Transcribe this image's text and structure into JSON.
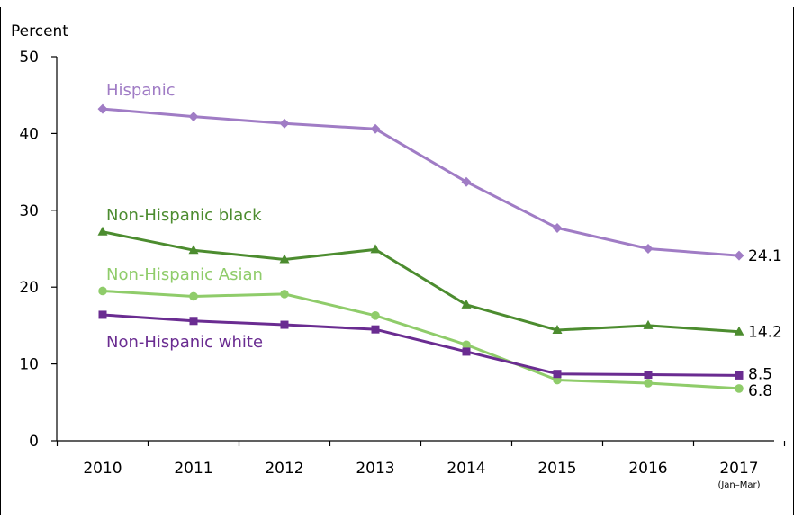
{
  "chart_data": {
    "type": "line",
    "ylabel": "Percent",
    "ylim": [
      0,
      50
    ],
    "yticks": [
      0,
      10,
      20,
      30,
      40,
      50
    ],
    "categories": [
      "2010",
      "2011",
      "2012",
      "2013",
      "2014",
      "2015",
      "2016",
      "2017"
    ],
    "category_sublabels": [
      "",
      "",
      "",
      "",
      "",
      "",
      "",
      "(Jan–Mar)"
    ],
    "grid": false,
    "legend": "inline labels beside lines",
    "series": [
      {
        "name": "Hispanic",
        "color": "#a07cc5",
        "marker": "diamond",
        "values": [
          43.2,
          42.2,
          41.3,
          40.6,
          33.7,
          27.7,
          25.0,
          24.1
        ],
        "end_label": "24.1"
      },
      {
        "name": "Non-Hispanic black",
        "color": "#4c8c2f",
        "marker": "triangle",
        "values": [
          27.2,
          24.8,
          23.6,
          24.9,
          17.7,
          14.4,
          15.0,
          14.2
        ],
        "end_label": "14.2"
      },
      {
        "name": "Non-Hispanic Asian",
        "color": "#8fcc6a",
        "marker": "circle",
        "values": [
          19.5,
          18.8,
          19.1,
          16.3,
          12.5,
          7.9,
          7.5,
          6.8
        ],
        "end_label": "6.8"
      },
      {
        "name": "Non-Hispanic white",
        "color": "#6a2c91",
        "marker": "square",
        "values": [
          16.4,
          15.6,
          15.1,
          14.5,
          11.6,
          8.7,
          8.6,
          8.5
        ],
        "end_label": "8.5"
      }
    ]
  }
}
